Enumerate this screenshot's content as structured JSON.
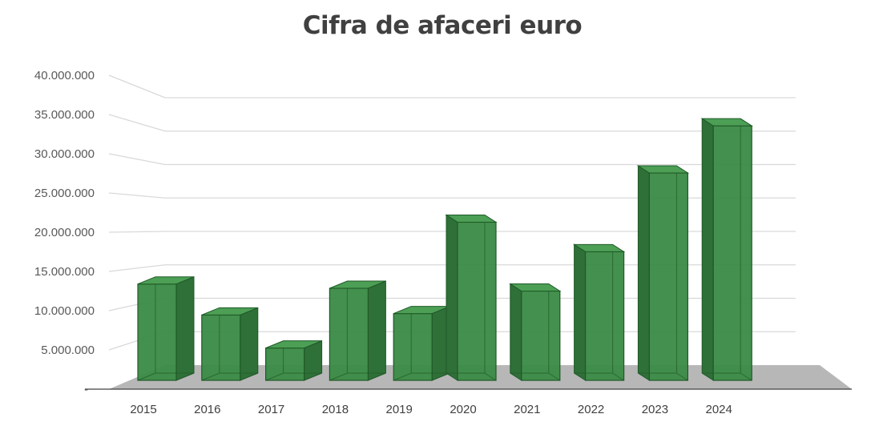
{
  "chart_data": {
    "type": "bar",
    "title": "Cifra de afaceri euro",
    "xlabel": "",
    "ylabel": "",
    "categories": [
      "2015",
      "2016",
      "2017",
      "2018",
      "2019",
      "2020",
      "2021",
      "2022",
      "2023",
      "2024"
    ],
    "values": [
      13700000,
      9300000,
      4600000,
      13100000,
      9500000,
      22500000,
      12700000,
      18300000,
      29500000,
      36200000
    ],
    "ylim": [
      0,
      40000000
    ],
    "yticks": [
      0,
      5000000,
      10000000,
      15000000,
      20000000,
      25000000,
      30000000,
      35000000,
      40000000
    ],
    "ytick_labels": [
      "-",
      "5.000.000",
      "10.000.000",
      "15.000.000",
      "20.000.000",
      "25.000.000",
      "30.000.000",
      "35.000.000",
      "40.000.000"
    ],
    "grid": true,
    "style": "3d-column",
    "colors": {
      "bar_front": "#3a8a45",
      "bar_side": "#2f6f38",
      "bar_top": "#4c9f55",
      "bar_edge": "#1f5a27",
      "floor": "#b7b7b7",
      "grid": "#d9d9d9",
      "axis": "#404040"
    }
  }
}
